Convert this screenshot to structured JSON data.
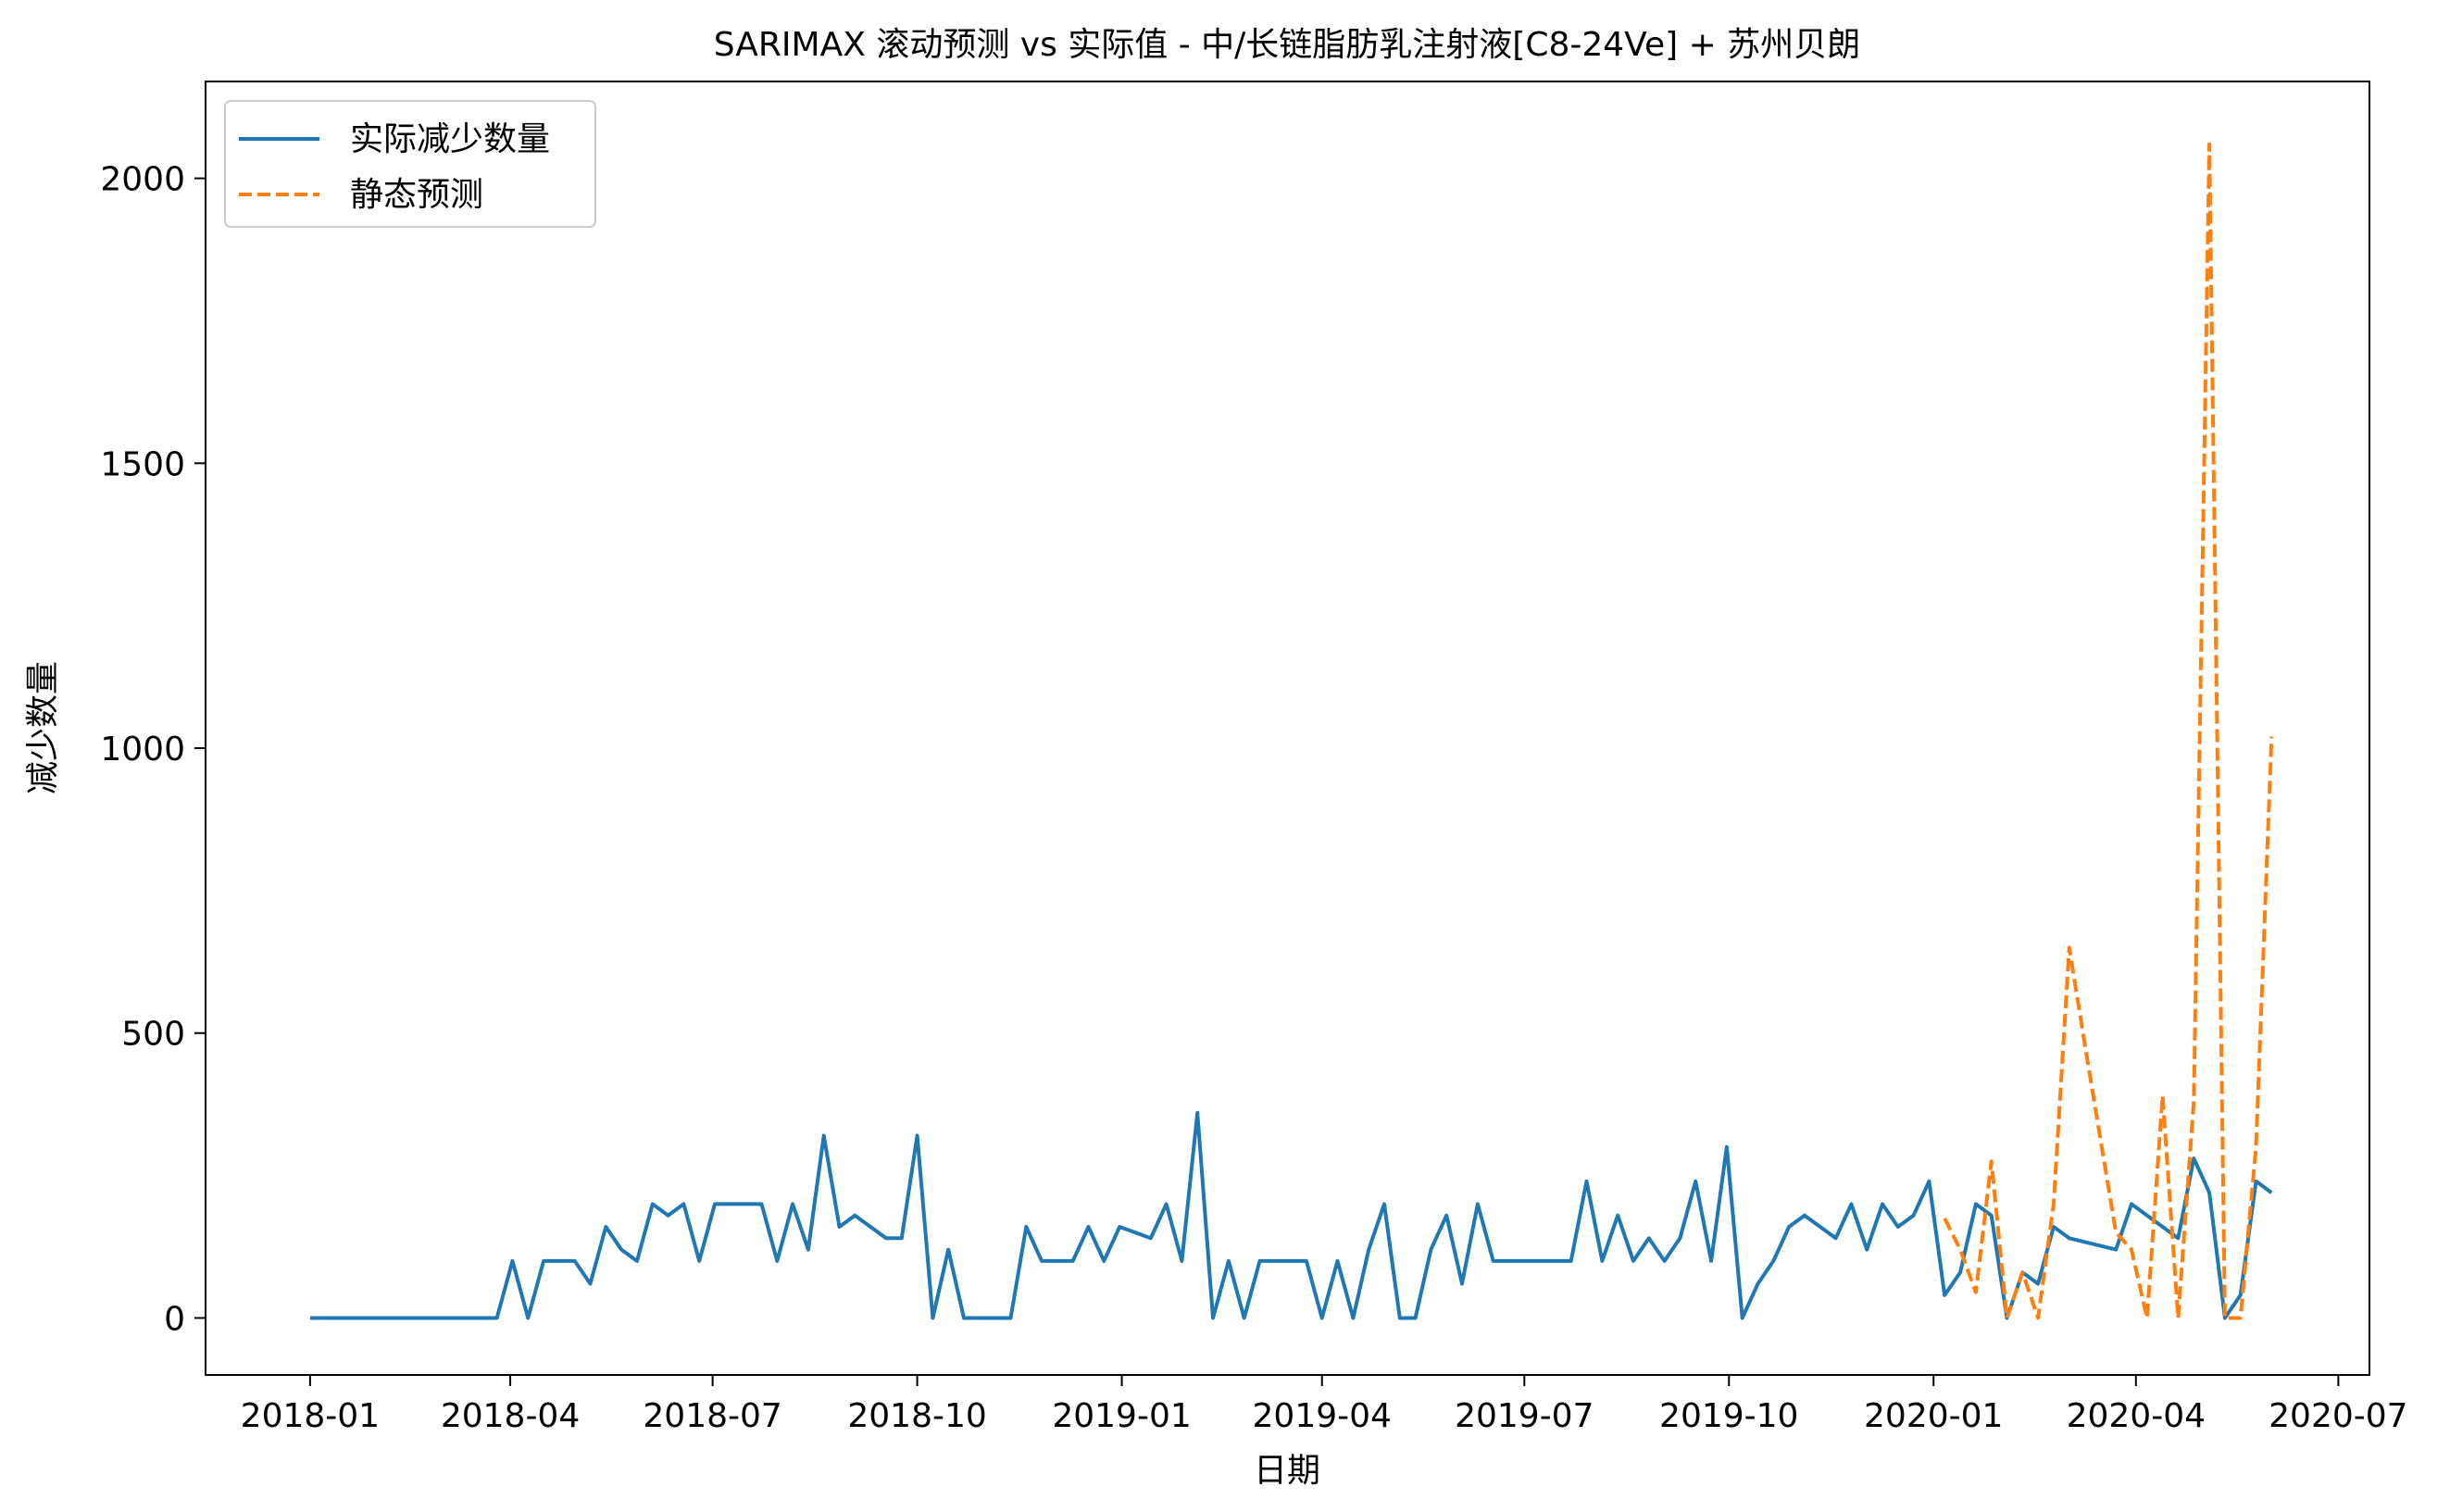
{
  "chart_data": {
    "type": "line",
    "title": "SARIMAX 滚动预测 vs 实际值 - 中/长链脂肪乳注射液[C8-24Ve] + 苏州贝朗",
    "xlabel": "日期",
    "ylabel": "减少数量",
    "xlim": [
      "2017-11-15",
      "2020-07-15"
    ],
    "ylim": [
      -100,
      2170
    ],
    "x_ticks": [
      "2018-01",
      "2018-04",
      "2018-07",
      "2018-10",
      "2019-01",
      "2019-04",
      "2019-07",
      "2019-10",
      "2020-01",
      "2020-04",
      "2020-07"
    ],
    "x_tick_dates": [
      "2018-01-01",
      "2018-04-01",
      "2018-07-01",
      "2018-10-01",
      "2019-01-01",
      "2019-04-01",
      "2019-07-01",
      "2019-10-01",
      "2020-01-01",
      "2020-04-01",
      "2020-07-01"
    ],
    "y_ticks": [
      0,
      500,
      1000,
      1500,
      2000
    ],
    "grid": false,
    "legend_position": "top-left",
    "series": [
      {
        "name": "实际减少数量",
        "color": "#1f77b4",
        "style": "solid",
        "points": [
          [
            "2018-01-01",
            0
          ],
          [
            "2018-01-08",
            0
          ],
          [
            "2018-01-15",
            0
          ],
          [
            "2018-01-22",
            0
          ],
          [
            "2018-01-29",
            0
          ],
          [
            "2018-02-05",
            0
          ],
          [
            "2018-02-12",
            0
          ],
          [
            "2018-02-19",
            0
          ],
          [
            "2018-02-26",
            0
          ],
          [
            "2018-03-05",
            0
          ],
          [
            "2018-03-12",
            0
          ],
          [
            "2018-03-19",
            0
          ],
          [
            "2018-03-26",
            0
          ],
          [
            "2018-04-02",
            100
          ],
          [
            "2018-04-09",
            0
          ],
          [
            "2018-04-16",
            100
          ],
          [
            "2018-04-23",
            100
          ],
          [
            "2018-04-30",
            100
          ],
          [
            "2018-05-07",
            60
          ],
          [
            "2018-05-14",
            160
          ],
          [
            "2018-05-21",
            120
          ],
          [
            "2018-05-28",
            100
          ],
          [
            "2018-06-04",
            200
          ],
          [
            "2018-06-11",
            180
          ],
          [
            "2018-06-18",
            200
          ],
          [
            "2018-06-25",
            100
          ],
          [
            "2018-07-02",
            200
          ],
          [
            "2018-07-09",
            200
          ],
          [
            "2018-07-16",
            200
          ],
          [
            "2018-07-23",
            200
          ],
          [
            "2018-07-30",
            100
          ],
          [
            "2018-08-06",
            200
          ],
          [
            "2018-08-13",
            120
          ],
          [
            "2018-08-20",
            320
          ],
          [
            "2018-08-27",
            160
          ],
          [
            "2018-09-03",
            180
          ],
          [
            "2018-09-17",
            140
          ],
          [
            "2018-09-24",
            140
          ],
          [
            "2018-10-01",
            320
          ],
          [
            "2018-10-08",
            0
          ],
          [
            "2018-10-15",
            120
          ],
          [
            "2018-10-22",
            0
          ],
          [
            "2018-11-12",
            0
          ],
          [
            "2018-11-19",
            160
          ],
          [
            "2018-11-26",
            100
          ],
          [
            "2018-12-10",
            100
          ],
          [
            "2018-12-17",
            160
          ],
          [
            "2018-12-24",
            100
          ],
          [
            "2018-12-31",
            160
          ],
          [
            "2019-01-14",
            140
          ],
          [
            "2019-01-21",
            200
          ],
          [
            "2019-01-28",
            100
          ],
          [
            "2019-02-04",
            360
          ],
          [
            "2019-02-11",
            0
          ],
          [
            "2019-02-18",
            100
          ],
          [
            "2019-02-25",
            0
          ],
          [
            "2019-03-04",
            100
          ],
          [
            "2019-03-25",
            100
          ],
          [
            "2019-04-01",
            0
          ],
          [
            "2019-04-08",
            100
          ],
          [
            "2019-04-15",
            0
          ],
          [
            "2019-04-22",
            120
          ],
          [
            "2019-04-29",
            200
          ],
          [
            "2019-05-06",
            0
          ],
          [
            "2019-05-13",
            0
          ],
          [
            "2019-05-20",
            120
          ],
          [
            "2019-05-27",
            180
          ],
          [
            "2019-06-03",
            60
          ],
          [
            "2019-06-10",
            200
          ],
          [
            "2019-06-17",
            100
          ],
          [
            "2019-07-22",
            100
          ],
          [
            "2019-07-29",
            240
          ],
          [
            "2019-08-05",
            100
          ],
          [
            "2019-08-12",
            180
          ],
          [
            "2019-08-19",
            100
          ],
          [
            "2019-08-26",
            140
          ],
          [
            "2019-09-02",
            100
          ],
          [
            "2019-09-09",
            140
          ],
          [
            "2019-09-16",
            240
          ],
          [
            "2019-09-23",
            100
          ],
          [
            "2019-09-30",
            300
          ],
          [
            "2019-10-07",
            0
          ],
          [
            "2019-10-14",
            60
          ],
          [
            "2019-10-21",
            100
          ],
          [
            "2019-10-28",
            160
          ],
          [
            "2019-11-04",
            180
          ],
          [
            "2019-11-18",
            140
          ],
          [
            "2019-11-25",
            200
          ],
          [
            "2019-12-02",
            120
          ],
          [
            "2019-12-09",
            200
          ],
          [
            "2019-12-16",
            160
          ],
          [
            "2019-12-23",
            180
          ],
          [
            "2019-12-30",
            240
          ],
          [
            "2020-01-06",
            40
          ],
          [
            "2020-01-13",
            80
          ],
          [
            "2020-01-20",
            200
          ],
          [
            "2020-01-27",
            180
          ],
          [
            "2020-02-03",
            0
          ],
          [
            "2020-02-10",
            80
          ],
          [
            "2020-02-17",
            60
          ],
          [
            "2020-02-24",
            160
          ],
          [
            "2020-03-02",
            140
          ],
          [
            "2020-03-23",
            120
          ],
          [
            "2020-03-30",
            200
          ],
          [
            "2020-04-13",
            160
          ],
          [
            "2020-04-20",
            140
          ],
          [
            "2020-04-27",
            280
          ],
          [
            "2020-05-04",
            220
          ],
          [
            "2020-05-11",
            0
          ],
          [
            "2020-05-18",
            40
          ],
          [
            "2020-05-25",
            240
          ],
          [
            "2020-06-01",
            220
          ]
        ]
      },
      {
        "name": "静态预测",
        "color": "#ff7f0e",
        "style": "dashed",
        "points": [
          [
            "2020-01-06",
            175
          ],
          [
            "2020-01-13",
            120
          ],
          [
            "2020-01-20",
            45
          ],
          [
            "2020-01-27",
            275
          ],
          [
            "2020-02-03",
            0
          ],
          [
            "2020-02-10",
            80
          ],
          [
            "2020-02-17",
            0
          ],
          [
            "2020-02-24",
            200
          ],
          [
            "2020-03-02",
            650
          ],
          [
            "2020-03-09",
            480
          ],
          [
            "2020-03-23",
            150
          ],
          [
            "2020-03-30",
            120
          ],
          [
            "2020-04-06",
            0
          ],
          [
            "2020-04-13",
            390
          ],
          [
            "2020-04-20",
            0
          ],
          [
            "2020-04-27",
            380
          ],
          [
            "2020-05-04",
            2060
          ],
          [
            "2020-05-11",
            0
          ],
          [
            "2020-05-18",
            0
          ],
          [
            "2020-05-25",
            300
          ],
          [
            "2020-06-01",
            1020
          ]
        ]
      }
    ]
  }
}
